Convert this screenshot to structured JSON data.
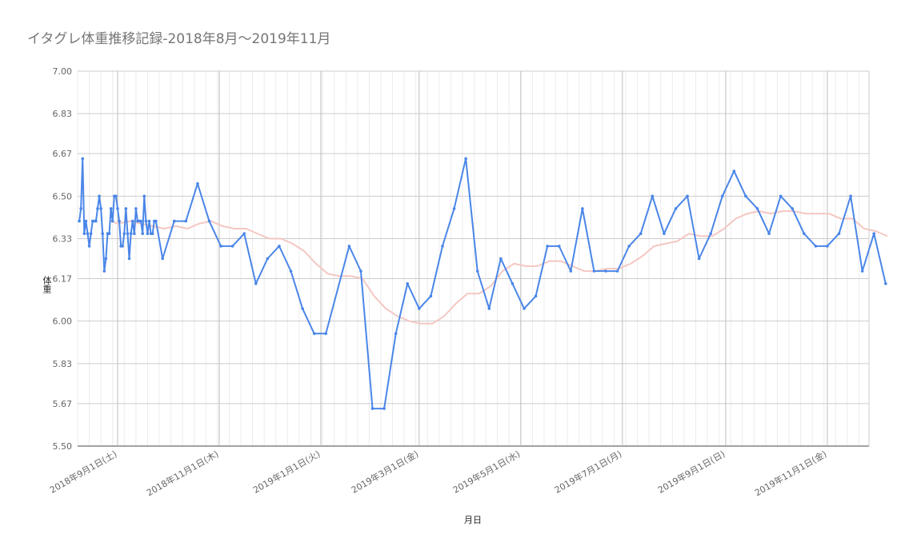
{
  "chart_data": {
    "type": "line",
    "title": "イタグレ体重推移記録-2018年8月～2019年11月",
    "xlabel": "月日",
    "ylabel": "体重",
    "ylim": [
      5.5,
      7.0
    ],
    "yticks": [
      "5.50",
      "5.67",
      "5.83",
      "6.00",
      "6.17",
      "6.33",
      "6.50",
      "6.67",
      "6.83",
      "7.00"
    ],
    "xlim": [
      "2018-08-08",
      "2019-11-26"
    ],
    "xticks": [
      {
        "date": "2018-09-01",
        "label": "2018年9月1日(土)"
      },
      {
        "date": "2018-11-01",
        "label": "2018年11月1日(木)"
      },
      {
        "date": "2019-01-01",
        "label": "2019年1月1日(火)"
      },
      {
        "date": "2019-03-01",
        "label": "2019年3月1日(金)"
      },
      {
        "date": "2019-05-01",
        "label": "2019年5月1日(水)"
      },
      {
        "date": "2019-07-01",
        "label": "2019年7月1日(月)"
      },
      {
        "date": "2019-09-01",
        "label": "2019年9月1日(日)"
      },
      {
        "date": "2019-11-01",
        "label": "2019年11月1日(金)"
      }
    ],
    "grid": true,
    "series": [
      {
        "color": "#4a86e8",
        "points": [
          [
            "2018-08-09",
            6.4
          ],
          [
            "2018-08-10",
            6.45
          ],
          [
            "2018-08-11",
            6.65
          ],
          [
            "2018-08-12",
            6.35
          ],
          [
            "2018-08-13",
            6.4
          ],
          [
            "2018-08-14",
            6.35
          ],
          [
            "2018-08-15",
            6.3
          ],
          [
            "2018-08-16",
            6.35
          ],
          [
            "2018-08-17",
            6.4
          ],
          [
            "2018-08-18",
            6.4
          ],
          [
            "2018-08-19",
            6.4
          ],
          [
            "2018-08-20",
            6.45
          ],
          [
            "2018-08-21",
            6.5
          ],
          [
            "2018-08-22",
            6.45
          ],
          [
            "2018-08-23",
            6.35
          ],
          [
            "2018-08-24",
            6.2
          ],
          [
            "2018-08-25",
            6.25
          ],
          [
            "2018-08-26",
            6.35
          ],
          [
            "2018-08-27",
            6.35
          ],
          [
            "2018-08-28",
            6.45
          ],
          [
            "2018-08-29",
            6.4
          ],
          [
            "2018-08-30",
            6.5
          ],
          [
            "2018-08-31",
            6.5
          ],
          [
            "2018-09-01",
            6.45
          ],
          [
            "2018-09-02",
            6.4
          ],
          [
            "2018-09-03",
            6.3
          ],
          [
            "2018-09-04",
            6.3
          ],
          [
            "2018-09-05",
            6.35
          ],
          [
            "2018-09-06",
            6.45
          ],
          [
            "2018-09-07",
            6.35
          ],
          [
            "2018-09-08",
            6.25
          ],
          [
            "2018-09-09",
            6.35
          ],
          [
            "2018-09-10",
            6.4
          ],
          [
            "2018-09-11",
            6.35
          ],
          [
            "2018-09-12",
            6.45
          ],
          [
            "2018-09-13",
            6.4
          ],
          [
            "2018-09-14",
            6.4
          ],
          [
            "2018-09-15",
            6.4
          ],
          [
            "2018-09-16",
            6.35
          ],
          [
            "2018-09-17",
            6.5
          ],
          [
            "2018-09-18",
            6.4
          ],
          [
            "2018-09-19",
            6.35
          ],
          [
            "2018-09-20",
            6.4
          ],
          [
            "2018-09-21",
            6.35
          ],
          [
            "2018-09-22",
            6.35
          ],
          [
            "2018-09-23",
            6.4
          ],
          [
            "2018-09-24",
            6.4
          ],
          [
            "2018-09-28",
            6.25
          ],
          [
            "2018-10-05",
            6.4
          ],
          [
            "2018-10-12",
            6.4
          ],
          [
            "2018-10-19",
            6.55
          ],
          [
            "2018-10-26",
            6.4
          ],
          [
            "2018-11-02",
            6.3
          ],
          [
            "2018-11-09",
            6.3
          ],
          [
            "2018-11-16",
            6.35
          ],
          [
            "2018-11-23",
            6.15
          ],
          [
            "2018-11-30",
            6.25
          ],
          [
            "2018-12-07",
            6.3
          ],
          [
            "2018-12-14",
            6.2
          ],
          [
            "2018-12-21",
            6.05
          ],
          [
            "2018-12-28",
            5.95
          ],
          [
            "2019-01-04",
            5.95
          ],
          [
            "2019-01-18",
            6.3
          ],
          [
            "2019-01-25",
            6.2
          ],
          [
            "2019-02-01",
            5.65
          ],
          [
            "2019-02-08",
            5.65
          ],
          [
            "2019-02-15",
            5.95
          ],
          [
            "2019-02-22",
            6.15
          ],
          [
            "2019-03-01",
            6.05
          ],
          [
            "2019-03-08",
            6.1
          ],
          [
            "2019-03-15",
            6.3
          ],
          [
            "2019-03-22",
            6.45
          ],
          [
            "2019-03-29",
            6.65
          ],
          [
            "2019-04-05",
            6.2
          ],
          [
            "2019-04-12",
            6.05
          ],
          [
            "2019-04-19",
            6.25
          ],
          [
            "2019-04-26",
            6.15
          ],
          [
            "2019-05-03",
            6.05
          ],
          [
            "2019-05-10",
            6.1
          ],
          [
            "2019-05-17",
            6.3
          ],
          [
            "2019-05-24",
            6.3
          ],
          [
            "2019-05-31",
            6.2
          ],
          [
            "2019-06-07",
            6.45
          ],
          [
            "2019-06-14",
            6.2
          ],
          [
            "2019-06-21",
            6.2
          ],
          [
            "2019-06-28",
            6.2
          ],
          [
            "2019-07-05",
            6.3
          ],
          [
            "2019-07-12",
            6.35
          ],
          [
            "2019-07-19",
            6.5
          ],
          [
            "2019-07-26",
            6.35
          ],
          [
            "2019-08-02",
            6.45
          ],
          [
            "2019-08-09",
            6.5
          ],
          [
            "2019-08-16",
            6.25
          ],
          [
            "2019-08-23",
            6.35
          ],
          [
            "2019-08-30",
            6.5
          ],
          [
            "2019-09-06",
            6.6
          ],
          [
            "2019-09-13",
            6.5
          ],
          [
            "2019-09-20",
            6.45
          ],
          [
            "2019-09-27",
            6.35
          ],
          [
            "2019-10-04",
            6.5
          ],
          [
            "2019-10-11",
            6.45
          ],
          [
            "2019-10-18",
            6.35
          ],
          [
            "2019-10-25",
            6.3
          ],
          [
            "2019-11-01",
            6.3
          ],
          [
            "2019-11-08",
            6.35
          ],
          [
            "2019-11-15",
            6.5
          ],
          [
            "2019-11-22",
            6.2
          ],
          [
            "2019-11-29",
            6.35
          ],
          [
            "2019-12-06",
            6.15
          ]
        ]
      },
      {
        "color": "#f4c7c3",
        "points": [
          [
            "2018-08-28",
            6.4
          ],
          [
            "2018-09-01",
            6.39
          ],
          [
            "2018-09-08",
            6.4
          ],
          [
            "2018-09-15",
            6.39
          ],
          [
            "2018-09-22",
            6.38
          ],
          [
            "2018-09-29",
            6.37
          ],
          [
            "2018-10-06",
            6.38
          ],
          [
            "2018-10-13",
            6.37
          ],
          [
            "2018-10-20",
            6.39
          ],
          [
            "2018-10-27",
            6.4
          ],
          [
            "2018-11-03",
            6.38
          ],
          [
            "2018-11-10",
            6.37
          ],
          [
            "2018-11-17",
            6.37
          ],
          [
            "2018-11-24",
            6.35
          ],
          [
            "2018-12-01",
            6.33
          ],
          [
            "2018-12-08",
            6.33
          ],
          [
            "2018-12-15",
            6.31
          ],
          [
            "2018-12-22",
            6.28
          ],
          [
            "2018-12-29",
            6.23
          ],
          [
            "2019-01-05",
            6.19
          ],
          [
            "2019-01-12",
            6.18
          ],
          [
            "2019-01-19",
            6.18
          ],
          [
            "2019-01-26",
            6.17
          ],
          [
            "2019-02-02",
            6.1
          ],
          [
            "2019-02-09",
            6.05
          ],
          [
            "2019-02-16",
            6.02
          ],
          [
            "2019-02-23",
            6.0
          ],
          [
            "2019-03-02",
            5.99
          ],
          [
            "2019-03-09",
            5.99
          ],
          [
            "2019-03-16",
            6.02
          ],
          [
            "2019-03-23",
            6.07
          ],
          [
            "2019-03-30",
            6.11
          ],
          [
            "2019-04-06",
            6.11
          ],
          [
            "2019-04-13",
            6.14
          ],
          [
            "2019-04-20",
            6.2
          ],
          [
            "2019-04-27",
            6.23
          ],
          [
            "2019-05-04",
            6.22
          ],
          [
            "2019-05-11",
            6.22
          ],
          [
            "2019-05-18",
            6.24
          ],
          [
            "2019-05-25",
            6.24
          ],
          [
            "2019-06-01",
            6.22
          ],
          [
            "2019-06-08",
            6.2
          ],
          [
            "2019-06-15",
            6.2
          ],
          [
            "2019-06-22",
            6.21
          ],
          [
            "2019-06-29",
            6.21
          ],
          [
            "2019-07-06",
            6.23
          ],
          [
            "2019-07-13",
            6.26
          ],
          [
            "2019-07-20",
            6.3
          ],
          [
            "2019-07-27",
            6.31
          ],
          [
            "2019-08-03",
            6.32
          ],
          [
            "2019-08-10",
            6.35
          ],
          [
            "2019-08-17",
            6.34
          ],
          [
            "2019-08-24",
            6.34
          ],
          [
            "2019-08-31",
            6.37
          ],
          [
            "2019-09-07",
            6.41
          ],
          [
            "2019-09-14",
            6.43
          ],
          [
            "2019-09-21",
            6.44
          ],
          [
            "2019-09-28",
            6.43
          ],
          [
            "2019-10-05",
            6.44
          ],
          [
            "2019-10-12",
            6.44
          ],
          [
            "2019-10-19",
            6.43
          ],
          [
            "2019-10-26",
            6.43
          ],
          [
            "2019-11-02",
            6.43
          ],
          [
            "2019-11-09",
            6.41
          ],
          [
            "2019-11-16",
            6.41
          ],
          [
            "2019-11-23",
            6.37
          ],
          [
            "2019-11-30",
            6.36
          ],
          [
            "2019-12-07",
            6.34
          ]
        ]
      }
    ]
  }
}
